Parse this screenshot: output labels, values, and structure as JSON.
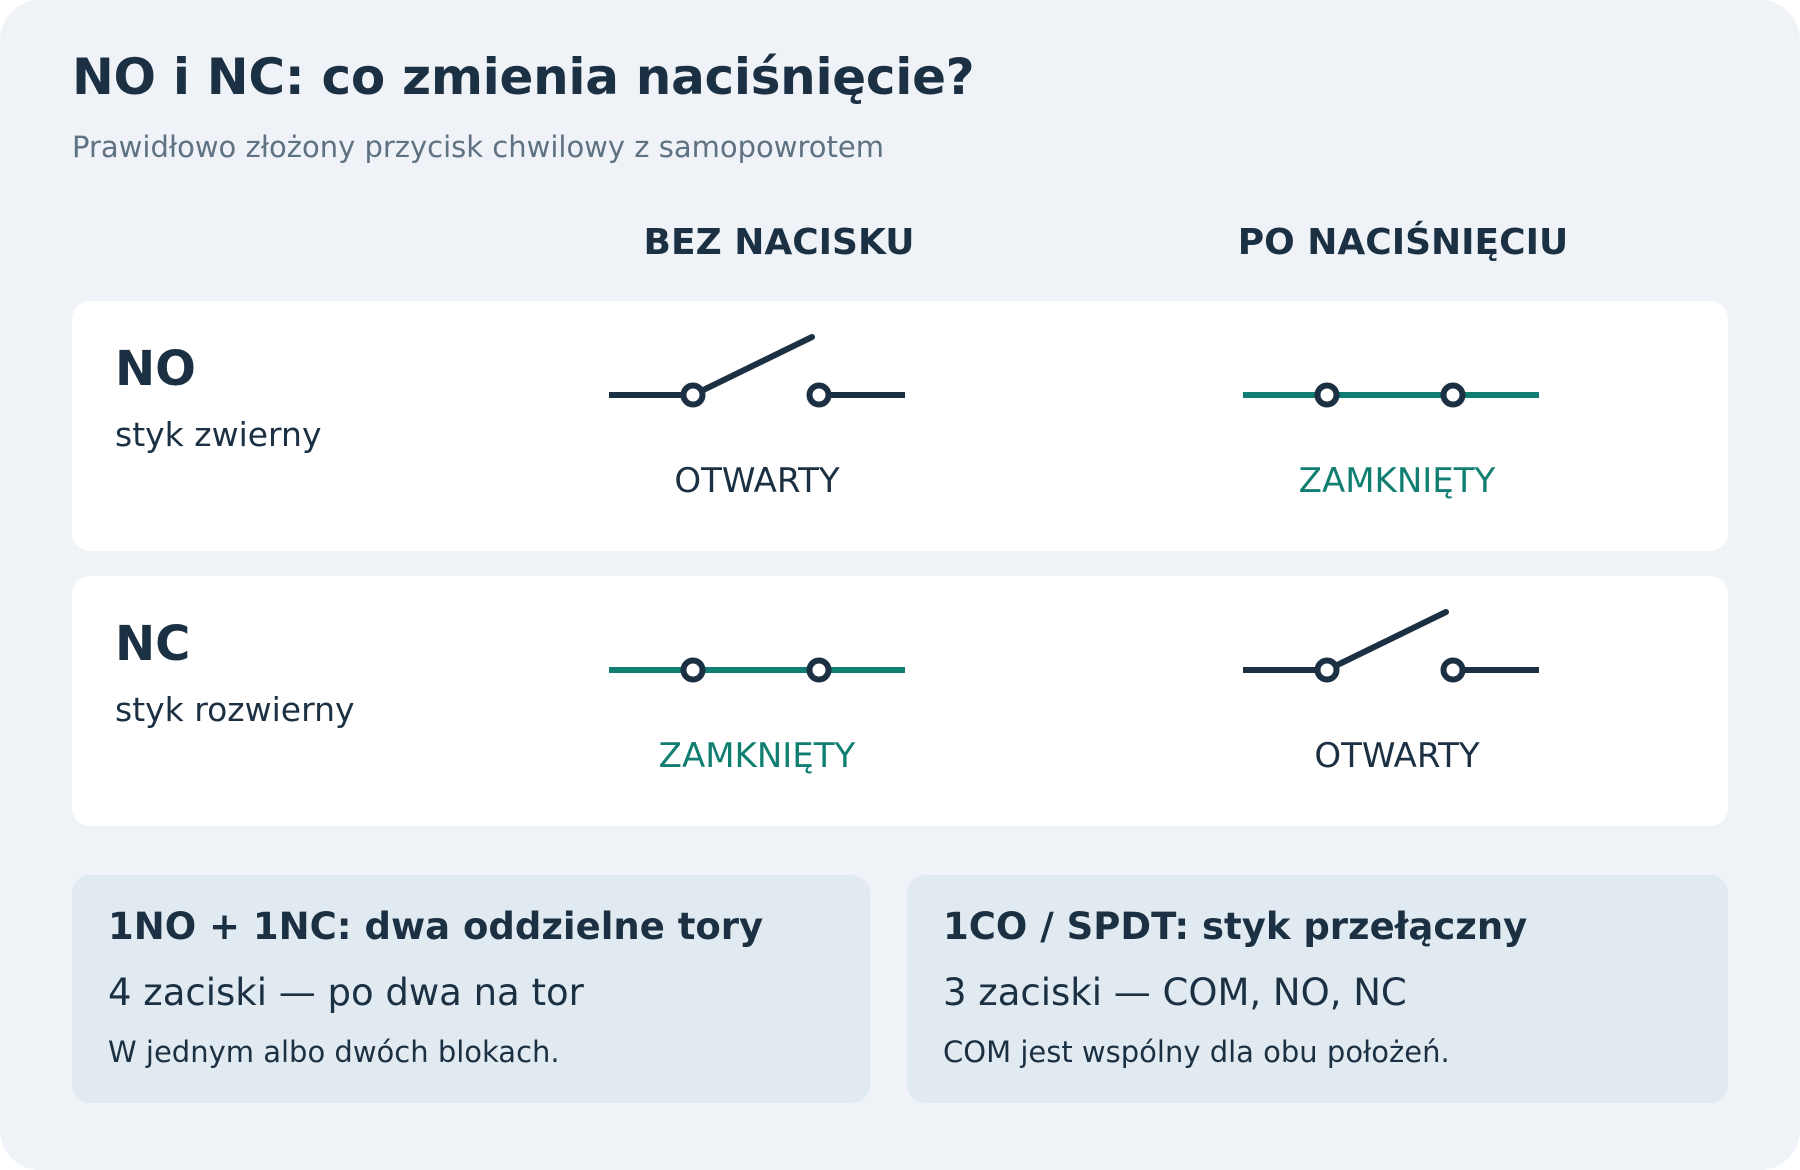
{
  "title": "NO i NC: co zmienia naciśnięcie?",
  "subtitle": "Prawidłowo złożony przycisk chwilowy z samopowrotem",
  "columns": {
    "left": "BEZ NACISKU",
    "right": "PO NACIŚNIĘCIU"
  },
  "colors": {
    "dark": "#1b3042",
    "teal": "#107f72",
    "background": "#eff3f8",
    "card": "#ffffff",
    "info_card": "#e0eaf0"
  },
  "rows": {
    "no": {
      "code": "NO",
      "description": "styk zwierny",
      "unpressed": {
        "state": "OTWARTY",
        "switch": "open"
      },
      "pressed": {
        "state": "ZAMKNIĘTY",
        "switch": "closed"
      }
    },
    "nc": {
      "code": "NC",
      "description": "styk rozwierny",
      "unpressed": {
        "state": "ZAMKNIĘTY",
        "switch": "closed"
      },
      "pressed": {
        "state": "OTWARTY",
        "switch": "open"
      }
    }
  },
  "cards": {
    "a": {
      "title": "1NO + 1NC: dwa oddzielne tory",
      "subtitle": "4 zaciski — po dwa na tor",
      "note": "W jednym albo dwóch blokach."
    },
    "b": {
      "title": "1CO / SPDT: styk przełączny",
      "subtitle": "3 zaciski — COM, NO, NC",
      "note": "COM jest wspólny dla obu położeń."
    }
  }
}
